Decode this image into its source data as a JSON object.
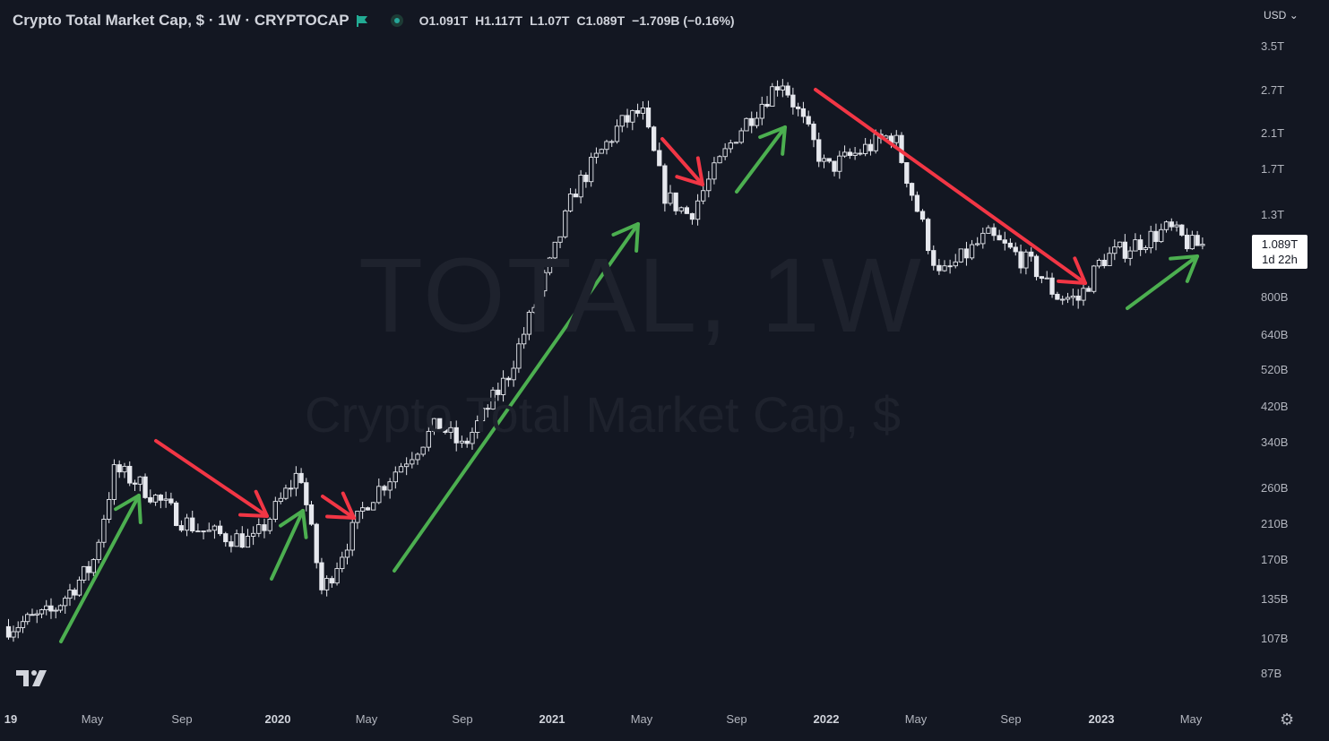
{
  "header": {
    "title": "Crypto Total Market Cap, $ · 1W · CRYPTOCAP",
    "ohlc": [
      {
        "k": "O",
        "v": "1.091T"
      },
      {
        "k": "H",
        "v": "1.117T"
      },
      {
        "k": "L",
        "v": "1.07T"
      },
      {
        "k": "C",
        "v": "1.089T"
      },
      {
        "k": "",
        "v": "−1.709B (−0.16%)"
      }
    ],
    "currency": "USD"
  },
  "watermark": {
    "line1": "TOTAL, 1W",
    "line2": "Crypto Total Market Cap, $"
  },
  "price_tag": {
    "value": "1.089T",
    "countdown": "1d 22h"
  },
  "icons": {
    "status_dot": "market-open-dot-icon",
    "flag": "green-flag-icon",
    "logo": "tradingview-logo-icon",
    "settings": "gear-icon",
    "dropdown": "chevron-down-icon"
  },
  "colors": {
    "background": "#131722",
    "candle": "#e6e8ee",
    "up_arrow": "#4caf50",
    "down_arrow": "#f23645",
    "flag": "#22ab94"
  },
  "chart_data": {
    "type": "candlestick",
    "title": "Crypto Total Market Cap, $",
    "y_scale": "log",
    "y_ticks": [
      "3.5T",
      "2.7T",
      "2.1T",
      "1.7T",
      "1.3T",
      "800B",
      "640B",
      "520B",
      "420B",
      "340B",
      "260B",
      "210B",
      "170B",
      "135B",
      "107B",
      "87B"
    ],
    "x_ticks": [
      "19",
      "May",
      "Sep",
      "2020",
      "May",
      "Sep",
      "2021",
      "May",
      "Sep",
      "2022",
      "May",
      "Sep",
      "2023",
      "May"
    ],
    "last_value": "1.089T",
    "approx_weekly_close_path": [
      {
        "date": "2019-01",
        "value": 115
      },
      {
        "date": "2019-03",
        "value": 125
      },
      {
        "date": "2019-05",
        "value": 165
      },
      {
        "date": "2019-06",
        "value": 290
      },
      {
        "date": "2019-07",
        "value": 270
      },
      {
        "date": "2019-09",
        "value": 215
      },
      {
        "date": "2019-10",
        "value": 200
      },
      {
        "date": "2019-12",
        "value": 190
      },
      {
        "date": "2020-02",
        "value": 290
      },
      {
        "date": "2020-03",
        "value": 140
      },
      {
        "date": "2020-05",
        "value": 240
      },
      {
        "date": "2020-08",
        "value": 380
      },
      {
        "date": "2020-09",
        "value": 330
      },
      {
        "date": "2020-11",
        "value": 500
      },
      {
        "date": "2021-01",
        "value": 1000
      },
      {
        "date": "2021-02",
        "value": 1500
      },
      {
        "date": "2021-04",
        "value": 2200
      },
      {
        "date": "2021-05",
        "value": 2400
      },
      {
        "date": "2021-06",
        "value": 1450
      },
      {
        "date": "2021-07",
        "value": 1300
      },
      {
        "date": "2021-09",
        "value": 2100
      },
      {
        "date": "2021-11",
        "value": 2900
      },
      {
        "date": "2022-01",
        "value": 1700
      },
      {
        "date": "2022-04",
        "value": 2100
      },
      {
        "date": "2022-06",
        "value": 900
      },
      {
        "date": "2022-08",
        "value": 1150
      },
      {
        "date": "2022-10",
        "value": 960
      },
      {
        "date": "2022-11",
        "value": 810
      },
      {
        "date": "2022-12",
        "value": 790
      },
      {
        "date": "2023-01",
        "value": 1000
      },
      {
        "date": "2023-04",
        "value": 1200
      },
      {
        "date": "2023-05",
        "value": 1089
      }
    ]
  }
}
